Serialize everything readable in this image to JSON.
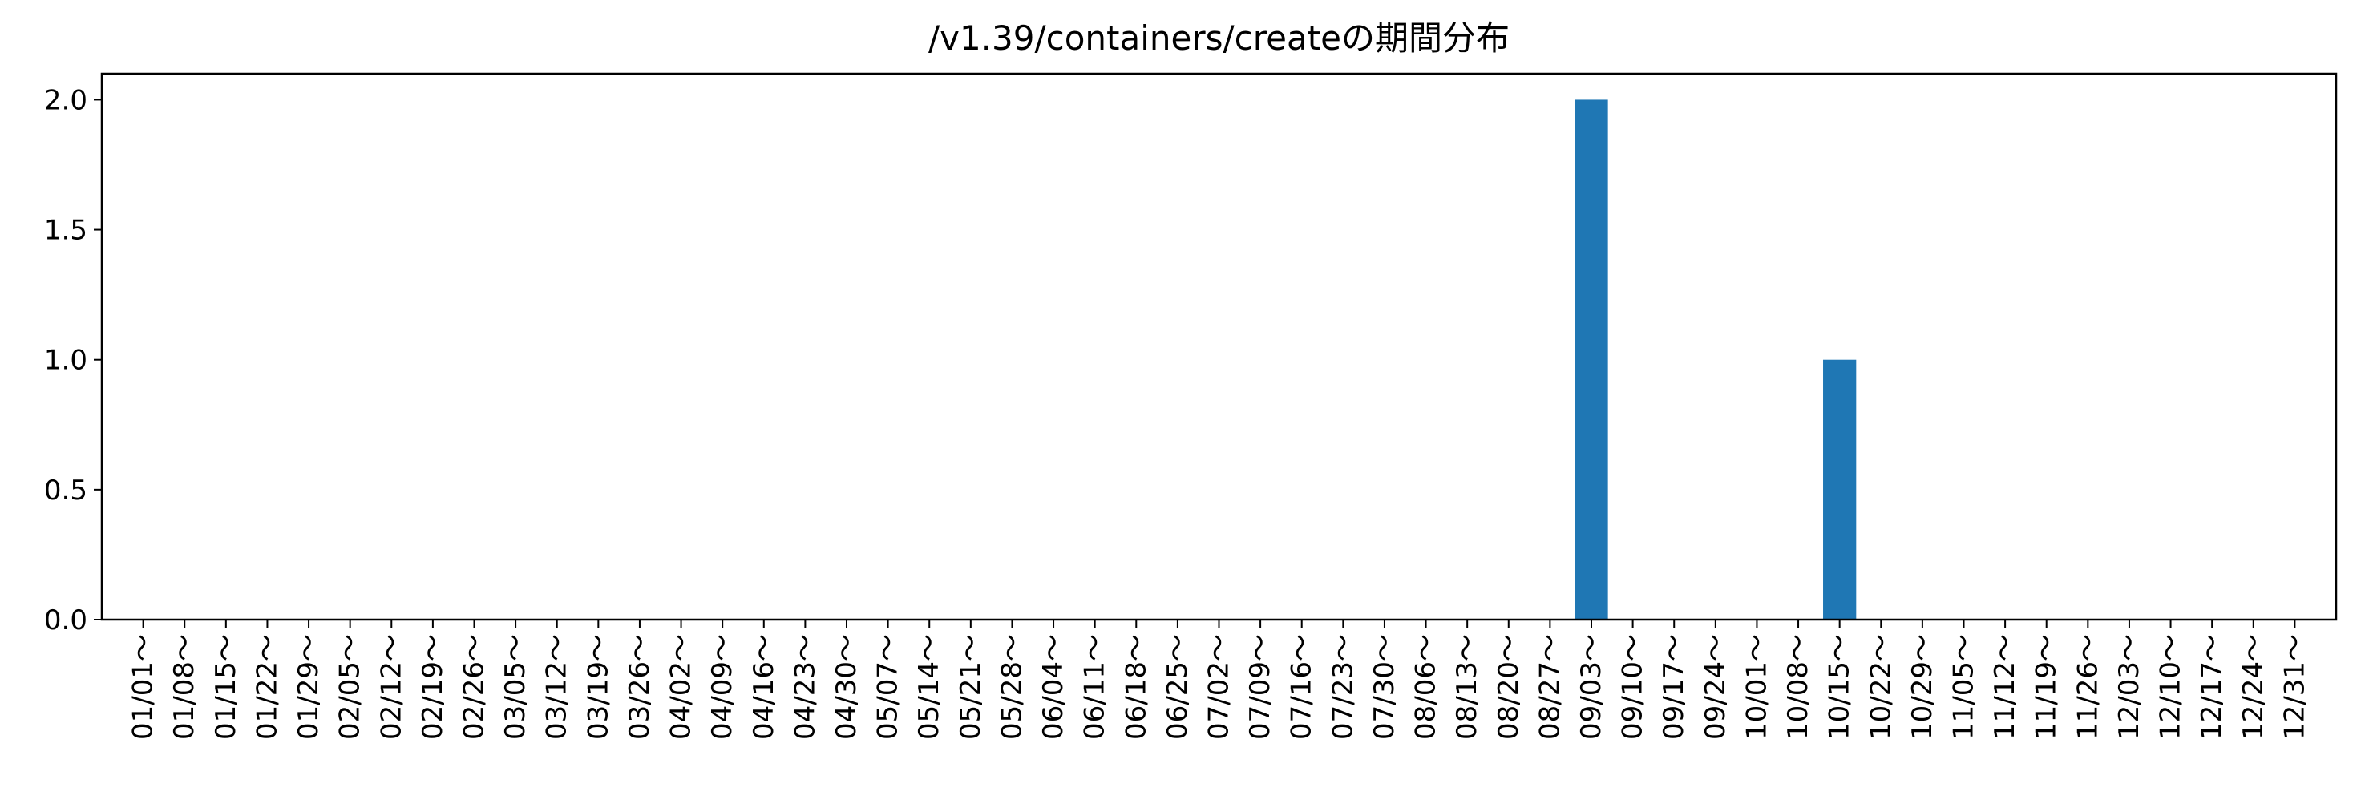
{
  "chart_data": {
    "type": "bar",
    "title": "/v1.39/containers/createの期間分布",
    "xlabel": "",
    "ylabel": "",
    "ylim": [
      0,
      2.1
    ],
    "yticks": [
      "0.0",
      "0.5",
      "1.0",
      "1.5",
      "2.0"
    ],
    "ytick_values": [
      0,
      0.5,
      1.0,
      1.5,
      2.0
    ],
    "grid": false,
    "bar_color": "#1f77b4",
    "categories": [
      "01/01～",
      "01/08～",
      "01/15～",
      "01/22～",
      "01/29～",
      "02/05～",
      "02/12～",
      "02/19～",
      "02/26～",
      "03/05～",
      "03/12～",
      "03/19～",
      "03/26～",
      "04/02～",
      "04/09～",
      "04/16～",
      "04/23～",
      "04/30～",
      "05/07～",
      "05/14～",
      "05/21～",
      "05/28～",
      "06/04～",
      "06/11～",
      "06/18～",
      "06/25～",
      "07/02～",
      "07/09～",
      "07/16～",
      "07/23～",
      "07/30～",
      "08/06～",
      "08/13～",
      "08/20～",
      "08/27～",
      "09/03～",
      "09/10～",
      "09/17～",
      "09/24～",
      "10/01～",
      "10/08～",
      "10/15～",
      "10/22～",
      "10/29～",
      "11/05～",
      "11/12～",
      "11/19～",
      "11/26～",
      "12/03～",
      "12/10～",
      "12/17～",
      "12/24～",
      "12/31～"
    ],
    "values": [
      0,
      0,
      0,
      0,
      0,
      0,
      0,
      0,
      0,
      0,
      0,
      0,
      0,
      0,
      0,
      0,
      0,
      0,
      0,
      0,
      0,
      0,
      0,
      0,
      0,
      0,
      0,
      0,
      0,
      0,
      0,
      0,
      0,
      0,
      0,
      2,
      0,
      0,
      0,
      0,
      0,
      1,
      0,
      0,
      0,
      0,
      0,
      0,
      0,
      0,
      0,
      0,
      0
    ]
  }
}
